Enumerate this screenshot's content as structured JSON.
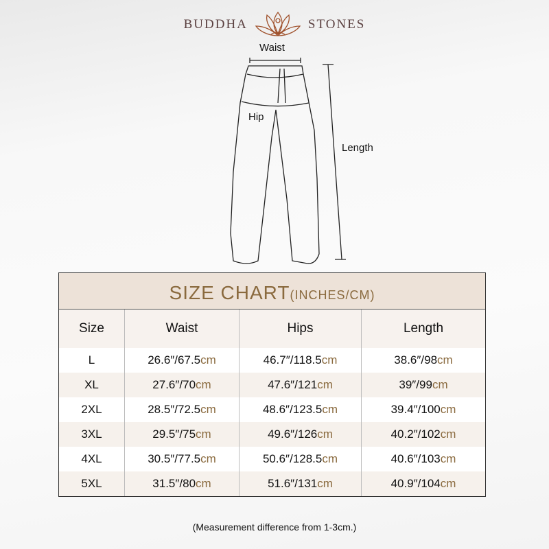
{
  "brand": {
    "left": "BUDDHA",
    "right": "STONES"
  },
  "diagram": {
    "waist": "Waist",
    "hip": "Hip",
    "length": "Length"
  },
  "table": {
    "title": "SIZE CHART",
    "unit": "(INCHES/CM)",
    "headers": [
      "Size",
      "Waist",
      "Hips",
      "Length"
    ],
    "rows": [
      {
        "size": "L",
        "waist": "26.6″/67.5",
        "hips": "46.7″/118.5",
        "length": "38.6″/98"
      },
      {
        "size": "XL",
        "waist": "27.6″/70",
        "hips": "47.6″/121",
        "length": "39″/99"
      },
      {
        "size": "2XL",
        "waist": "28.5″/72.5",
        "hips": "48.6″/123.5",
        "length": "39.4″/100"
      },
      {
        "size": "3XL",
        "waist": "29.5″/75",
        "hips": "49.6″/126",
        "length": "40.2″/102"
      },
      {
        "size": "4XL",
        "waist": "30.5″/77.5",
        "hips": "50.6″/128.5",
        "length": "40.6″/103"
      },
      {
        "size": "5XL",
        "waist": "31.5″/80",
        "hips": "51.6″/131",
        "length": "40.9″/104"
      }
    ],
    "unit_suffix": "cm"
  },
  "note": "(Measurement difference from 1-3cm.)",
  "colors": {
    "accent": "#8a6a3e",
    "title_band": "#ede2d8"
  }
}
